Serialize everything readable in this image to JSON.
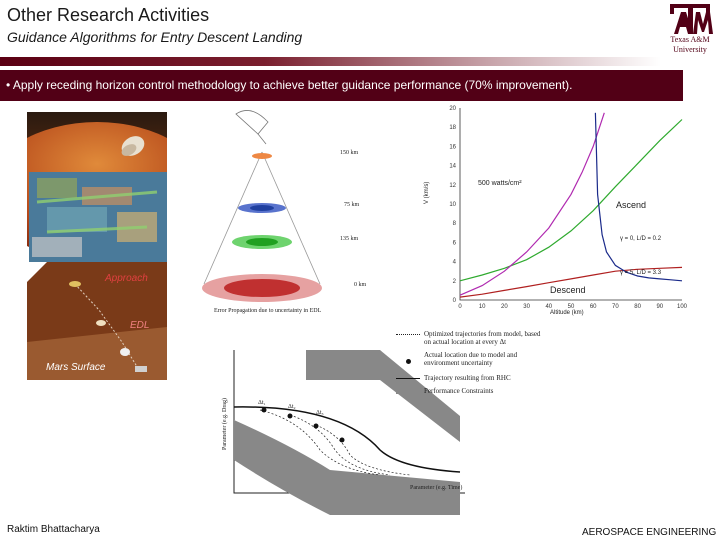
{
  "header": {
    "title": "Other Research Activities",
    "subtitle": "Guidance Algorithms for Entry Descent Landing"
  },
  "logo": {
    "mark": "ATM",
    "name_line1": "Texas A&M",
    "name_line2": "University"
  },
  "bullet": {
    "marker": "•",
    "text": "Apply receding horizon control methodology to achieve better guidance performance (70% improvement)."
  },
  "mars_panel": {
    "approach_label": "Approach",
    "edl_label": "EDL",
    "surface_label": "Mars Surface"
  },
  "cone_diagram": {
    "levels": [
      "150 km",
      "75 km",
      "135 km",
      "0 km"
    ],
    "caption": "Error Propagation due to uncertainty in EDL"
  },
  "line_chart": {
    "annotation": "500 watts/cm²",
    "ascend_label": "Ascend",
    "descend_label": "Descend",
    "curve_label_1": "γ = 0, L/D = 0.2",
    "curve_label_2": "γ = 5, L/D = 3.3",
    "xlabel": "Altitude (km)",
    "ylabel": "V (km/s)"
  },
  "rhc_diagram": {
    "xlabel": "Parameter (e.g. Time)",
    "ylabel": "Parameter (e.g. Drag)",
    "delta_labels": [
      "Δt₁",
      "Δt₂",
      "Δt₃"
    ],
    "legend": [
      {
        "id": "optimized",
        "text": "Optimized trajectories from model, based on actual location at every Δt"
      },
      {
        "id": "actual",
        "text": "Actual location due to model and environment uncertainty"
      },
      {
        "id": "rhc",
        "text": "Trajectory resulting from RHC"
      },
      {
        "id": "constraints",
        "text": "Performance Constraints"
      }
    ]
  },
  "footer": {
    "author": "Raktim Bhattacharya",
    "department": "AEROSPACE ENGINEERING"
  },
  "colors": {
    "maroon": "#520016",
    "green_curve": "#2faa2f",
    "purple_curve": "#b02ab0",
    "red_curve": "#b02020",
    "blue_curve": "#1a2a8a"
  },
  "chart_data": {
    "type": "line",
    "title": "",
    "xlabel": "Altitude (km)",
    "ylabel": "V (km/s)",
    "xlim": [
      0,
      100
    ],
    "ylim": [
      0,
      20
    ],
    "x_ticks": [
      0,
      10,
      20,
      30,
      40,
      50,
      60,
      70,
      80,
      90,
      100
    ],
    "y_ticks": [
      0,
      2,
      4,
      6,
      8,
      10,
      12,
      14,
      16,
      18,
      20
    ],
    "series": [
      {
        "name": "",
        "color": "#2faa2f",
        "x": [
          0,
          10,
          20,
          30,
          40,
          50,
          60,
          70,
          80,
          90,
          100
        ],
        "y": [
          2.0,
          2.6,
          3.3,
          4.2,
          5.5,
          7.2,
          9.3,
          11.8,
          14.2,
          16.6,
          18.8
        ]
      },
      {
        "name": "",
        "color": "#b02ab0",
        "x": [
          0,
          10,
          20,
          30,
          40,
          50,
          55,
          60,
          65
        ],
        "y": [
          0.5,
          1.5,
          3.0,
          5.0,
          7.5,
          11.0,
          13.3,
          16.0,
          19.5
        ]
      },
      {
        "name": "",
        "color": "#b02020",
        "x": [
          0,
          10,
          20,
          30,
          40,
          50,
          60,
          70,
          80,
          90,
          100
        ],
        "y": [
          0.3,
          0.6,
          1.0,
          1.4,
          1.8,
          2.2,
          2.6,
          3.0,
          3.2,
          3.3,
          3.4
        ]
      },
      {
        "name": "",
        "color": "#1a2a8a",
        "x": [
          61,
          62,
          64,
          66,
          70,
          75,
          80,
          85,
          90,
          95,
          100
        ],
        "y": [
          19.5,
          11.0,
          6.8,
          5.0,
          3.6,
          2.9,
          2.5,
          2.3,
          2.2,
          2.1,
          2.0
        ]
      }
    ]
  }
}
